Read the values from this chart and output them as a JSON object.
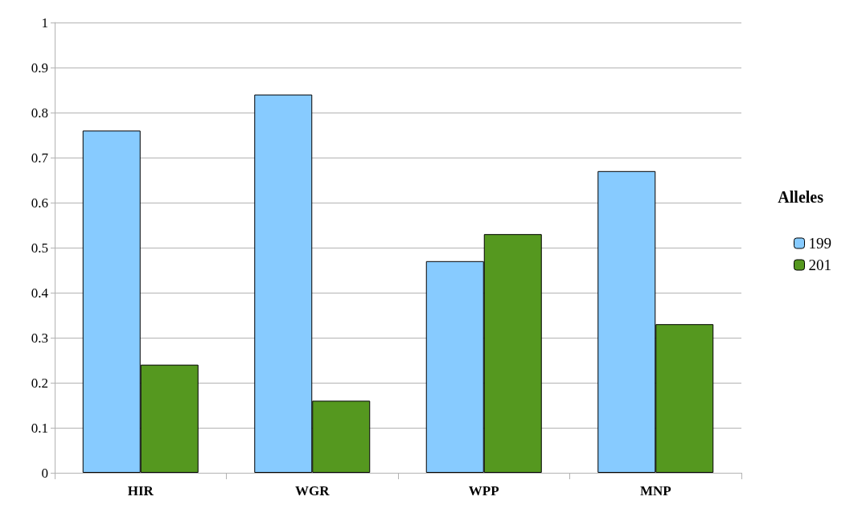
{
  "chart_data": {
    "type": "bar",
    "categories": [
      "HIR",
      "WGR",
      "WPP",
      "MNP"
    ],
    "legend_title": "Alleles",
    "series": [
      {
        "name": "199",
        "color": "#87cbff",
        "values": [
          0.76,
          0.84,
          0.47,
          0.67
        ]
      },
      {
        "name": "201",
        "color": "#55981f",
        "values": [
          0.24,
          0.16,
          0.53,
          0.33
        ]
      }
    ],
    "ylim": [
      0,
      1
    ],
    "yticks": [
      0,
      0.1,
      0.2,
      0.3,
      0.4,
      0.5,
      0.6,
      0.7,
      0.8,
      0.9,
      1
    ],
    "grid": "y",
    "legend": "right"
  }
}
